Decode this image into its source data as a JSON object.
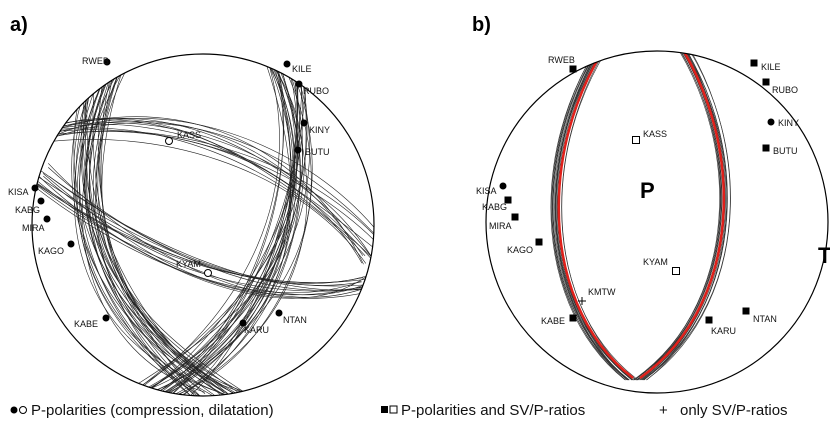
{
  "panels": [
    {
      "label": "a)",
      "stations": [
        "RWEB",
        "KILE",
        "RUBO",
        "KINY",
        "BUTU",
        "KASS",
        "KISA",
        "KABG",
        "MIRA",
        "KAGO",
        "KYAM",
        "NTAN",
        "KARU",
        "KABE"
      ]
    },
    {
      "label": "b)",
      "stations": [
        "RWEB",
        "KILE",
        "RUBO",
        "KINY",
        "BUTU",
        "KASS",
        "KISA",
        "KABG",
        "MIRA",
        "KAGO",
        "KYAM",
        "KMTW",
        "KABE",
        "KARU",
        "NTAN"
      ],
      "regions": [
        "P",
        "T"
      ]
    }
  ],
  "legend": [
    "P-polarities (compression, dilatation)",
    "P-polarities and SV/P-ratios",
    "only  SV/P-ratios"
  ]
}
